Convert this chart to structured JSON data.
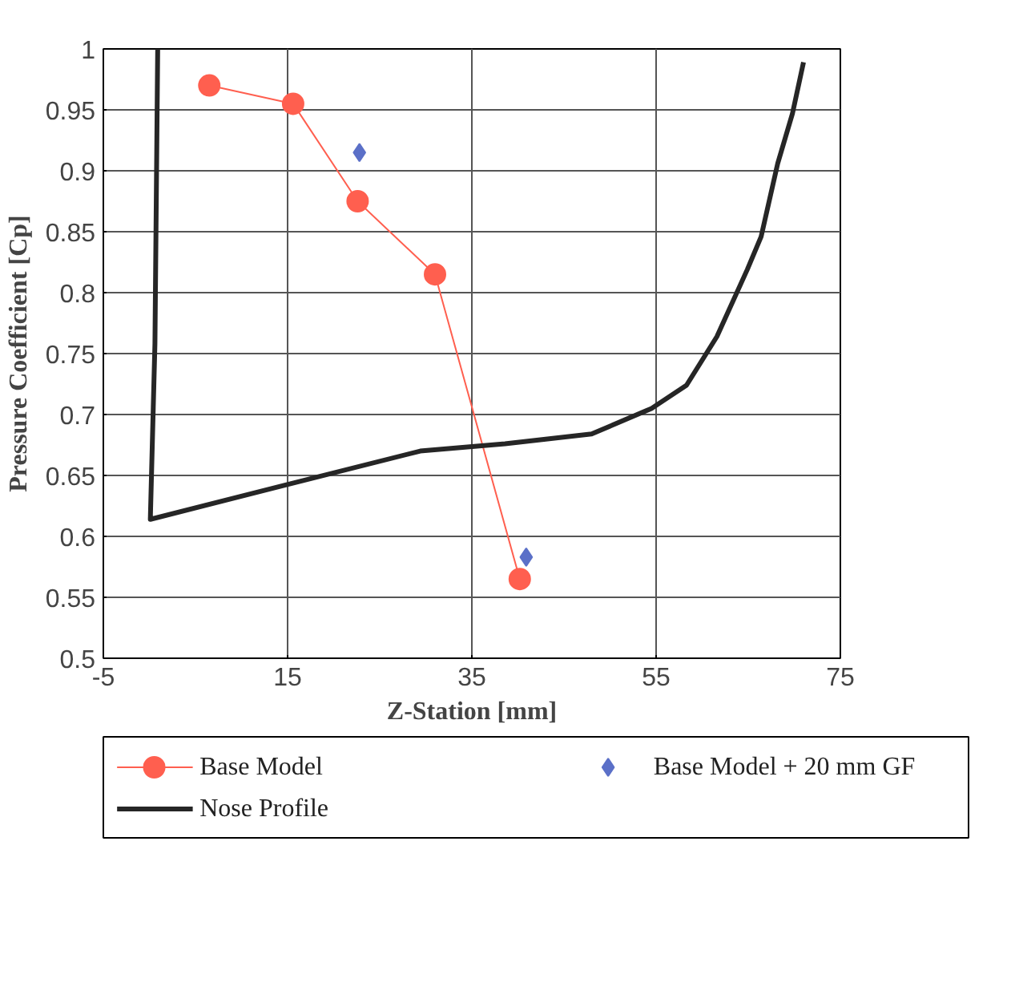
{
  "chart_data": {
    "type": "line",
    "xlabel": "Z-Station [mm]",
    "ylabel": "Pressure Coefficient [Cp]",
    "xlim": [
      -5,
      75
    ],
    "xticks": [
      -5,
      15,
      35,
      55,
      75
    ],
    "ylim": [
      0.5,
      1
    ],
    "yticks": [
      0.5,
      0.55,
      0.6,
      0.65,
      0.7,
      0.75,
      0.8,
      0.85,
      0.9,
      0.95,
      1
    ],
    "grid": true,
    "legend": "bottom",
    "series": [
      {
        "name": "Base Model",
        "marker": "circle",
        "color": "#ff5f4f",
        "x": [
          6.5,
          15.6,
          22.6,
          31,
          40.2
        ],
        "values": [
          0.97,
          0.955,
          0.875,
          0.815,
          0.565
        ]
      },
      {
        "name": "Base Model + 20 mm GF",
        "type": "scatter",
        "marker": "diamond",
        "color": "#5b70c8",
        "x": [
          22.8,
          40.9
        ],
        "values": [
          0.915,
          0.583
        ]
      },
      {
        "name": "Nose Profile",
        "marker": "none",
        "color": "#262626",
        "x": [
          0.9,
          0.6,
          0.1,
          14.7,
          29.4,
          38.6,
          48,
          54.5,
          58.3,
          61.6,
          64.9,
          66.4,
          68.2,
          69.8,
          71
        ],
        "values": [
          1.0,
          0.758,
          0.614,
          0.642,
          0.67,
          0.676,
          0.684,
          0.705,
          0.724,
          0.764,
          0.819,
          0.846,
          0.906,
          0.947,
          0.989
        ]
      }
    ]
  }
}
